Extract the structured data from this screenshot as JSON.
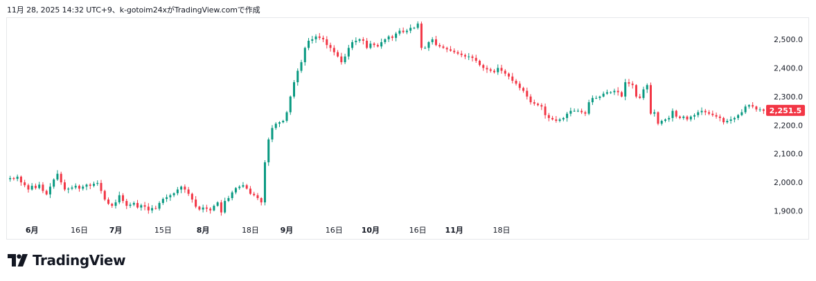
{
  "header": {
    "caption": "11月 28, 2025 14:32 UTC+9、k-gotoim24xがTradingView.comで作成"
  },
  "brand": {
    "name": "TradingView"
  },
  "colors": {
    "up": "#089981",
    "down": "#f23645",
    "badge": "#f23645"
  },
  "chart_data": {
    "type": "candlestick",
    "y_ticks": [
      "2,500.0",
      "2,400.0",
      "2,300.0",
      "2,200.0",
      "2,100.0",
      "2,000.0",
      "1,900.0"
    ],
    "y_tick_values": [
      2500,
      2400,
      2300,
      2200,
      2100,
      2000,
      1900
    ],
    "ylim": [
      1870,
      2565
    ],
    "x_labels": [
      "6月",
      "16日",
      "7月",
      "15日",
      "8月",
      "18日",
      "9月",
      "16日",
      "10月",
      "16日",
      "11月",
      "18日"
    ],
    "x_label_month": [
      true,
      false,
      true,
      false,
      true,
      false,
      true,
      false,
      true,
      false,
      true,
      false
    ],
    "x_label_index": [
      6,
      19,
      29,
      42,
      53,
      66,
      76,
      89,
      99,
      112,
      122,
      135
    ],
    "last_price": "2,251.5",
    "last_value": 2251.5,
    "close_series": [
      2015,
      2012,
      2020,
      2000,
      1990,
      1975,
      1988,
      1980,
      1992,
      1970,
      1958,
      1985,
      2010,
      2030,
      2000,
      1975,
      1978,
      1982,
      1988,
      1978,
      1985,
      1992,
      1988,
      1995,
      1998,
      1970,
      1940,
      1925,
      1918,
      1930,
      1955,
      1935,
      1918,
      1922,
      1928,
      1912,
      1920,
      1915,
      1902,
      1910,
      1908,
      1928,
      1942,
      1948,
      1955,
      1962,
      1975,
      1985,
      1975,
      1960,
      1940,
      1915,
      1905,
      1912,
      1908,
      1902,
      1918,
      1930,
      1895,
      1935,
      1945,
      1965,
      1980,
      1985,
      1990,
      1978,
      1960,
      1955,
      1945,
      1930,
      2070,
      2150,
      2190,
      2205,
      2210,
      2215,
      2245,
      2300,
      2350,
      2390,
      2420,
      2470,
      2495,
      2500,
      2510,
      2505,
      2500,
      2480,
      2470,
      2455,
      2440,
      2420,
      2440,
      2470,
      2490,
      2495,
      2500,
      2495,
      2470,
      2485,
      2480,
      2475,
      2490,
      2500,
      2510,
      2505,
      2520,
      2530,
      2525,
      2530,
      2540,
      2540,
      2555,
      2470,
      2470,
      2490,
      2500,
      2480,
      2475,
      2470,
      2465,
      2460,
      2455,
      2450,
      2445,
      2440,
      2440,
      2435,
      2425,
      2410,
      2400,
      2395,
      2390,
      2385,
      2400,
      2390,
      2380,
      2370,
      2355,
      2345,
      2330,
      2320,
      2300,
      2280,
      2275,
      2270,
      2265,
      2235,
      2225,
      2220,
      2215,
      2220,
      2225,
      2240,
      2250,
      2250,
      2250,
      2245,
      2240,
      2280,
      2295,
      2295,
      2300,
      2310,
      2315,
      2315,
      2320,
      2315,
      2300,
      2350,
      2345,
      2340,
      2300,
      2295,
      2325,
      2340,
      2240,
      2245,
      2205,
      2215,
      2220,
      2225,
      2250,
      2230,
      2225,
      2230,
      2220,
      2230,
      2235,
      2245,
      2250,
      2245,
      2240,
      2235,
      2230,
      2225,
      2210,
      2215,
      2220,
      2225,
      2235,
      2245,
      2265,
      2270,
      2265,
      2255,
      2255,
      2250
    ]
  }
}
